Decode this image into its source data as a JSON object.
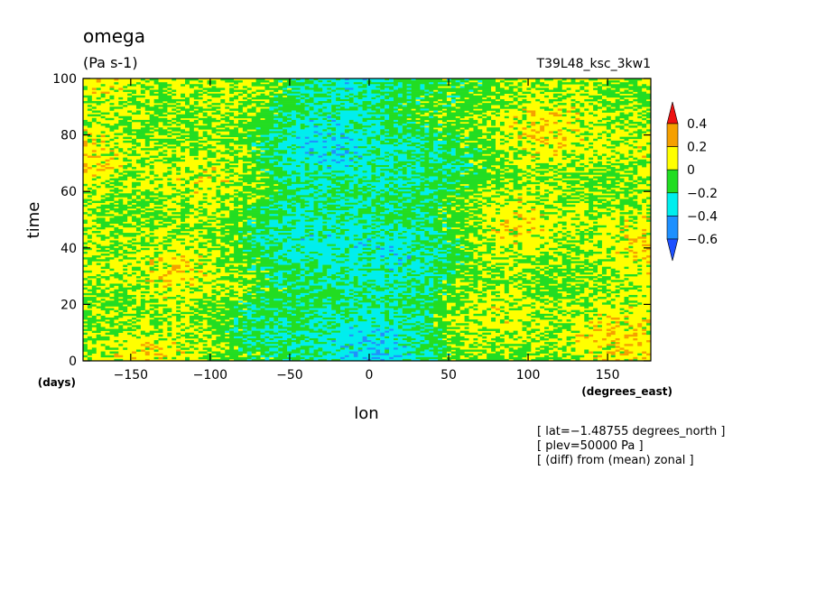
{
  "chart_data": {
    "type": "heatmap",
    "title": "omega",
    "units": "(Pa s-1)",
    "run_label": "T39L48_ksc_3kw1",
    "xlabel": "lon",
    "xunits": "(degrees_east)",
    "ylabel": "time",
    "yunits": "(days)",
    "xlim": [
      -180,
      177.1875
    ],
    "ylim": [
      0,
      100
    ],
    "xticks": [
      -150,
      -100,
      -50,
      0,
      50,
      100,
      150
    ],
    "xtick_labels": [
      "−150",
      "−100",
      "−50",
      "0",
      "50",
      "100",
      "150"
    ],
    "yticks": [
      0,
      20,
      40,
      60,
      80,
      100
    ],
    "ytick_labels": [
      "0",
      "20",
      "40",
      "60",
      "80",
      "100"
    ],
    "colorbar": {
      "labels": [
        "0.4",
        "0.2",
        "0",
        "−0.2",
        "−0.4",
        "−0.6"
      ],
      "levels": [
        0.4,
        0.2,
        0,
        -0.2,
        -0.4,
        -0.6
      ],
      "colors": {
        "above_0.4": "#ee1111",
        "0.2_to_0.4": "#f5a000",
        "0_to_0.2": "#ffff00",
        "-0.2_to_0": "#22dd22",
        "-0.4_to_-0.2": "#00eeee",
        "-0.6_to_-0.4": "#1e90ff",
        "below_-0.6": "#1e50ff"
      }
    },
    "pattern": {
      "description_key": "zonal anomaly field; negative values concentrated near lon -60 to 60 across all days",
      "negative_center_lon": -10
    },
    "notes": [
      "[ lat=−1.48755 degrees_north ]",
      "[ plev=50000 Pa ]",
      "[ (diff) from (mean) zonal ]"
    ]
  }
}
